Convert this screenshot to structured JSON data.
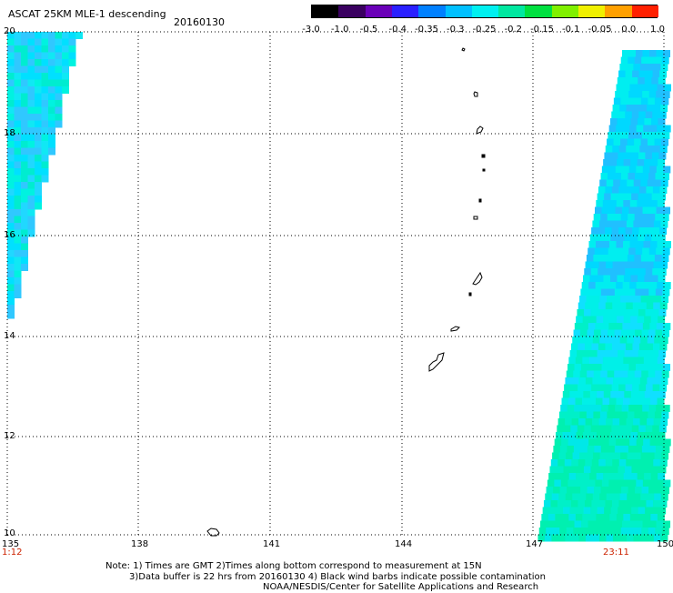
{
  "header": {
    "title": "ASCAT 25KM MLE-1 descending",
    "date": "20160130"
  },
  "colorbar": {
    "ticks": [
      "-3.0",
      "-1.0",
      "-0.5",
      "-0.4",
      "-0.35",
      "-0.3",
      "-0.25",
      "-0.2",
      "-0.15",
      "-0.1",
      "-0.05",
      "0.0",
      "1.0"
    ],
    "colors": [
      "#000000",
      "#3a0060",
      "#6a00b8",
      "#2a20ff",
      "#0080ff",
      "#00c0ff",
      "#00f0f0",
      "#00e8a0",
      "#00e040",
      "#80f000",
      "#f0f000",
      "#ffa000",
      "#ff2000"
    ]
  },
  "axes": {
    "lat_labels": [
      "20",
      "18",
      "16",
      "14",
      "12",
      "10"
    ],
    "lon_labels": [
      "135",
      "138",
      "141",
      "144",
      "147",
      "150"
    ]
  },
  "times": {
    "left": "1:12",
    "right": "23:11"
  },
  "notes": [
    "Note: 1) Times are GMT 2)Times along bottom correspond to measurement at 15N",
    "3)Data buffer is 22 hrs from 20160130 4) Black wind barbs indicate possible contamination",
    "NOAA/NESDIS/Center for Satellite Applications and Research"
  ]
}
